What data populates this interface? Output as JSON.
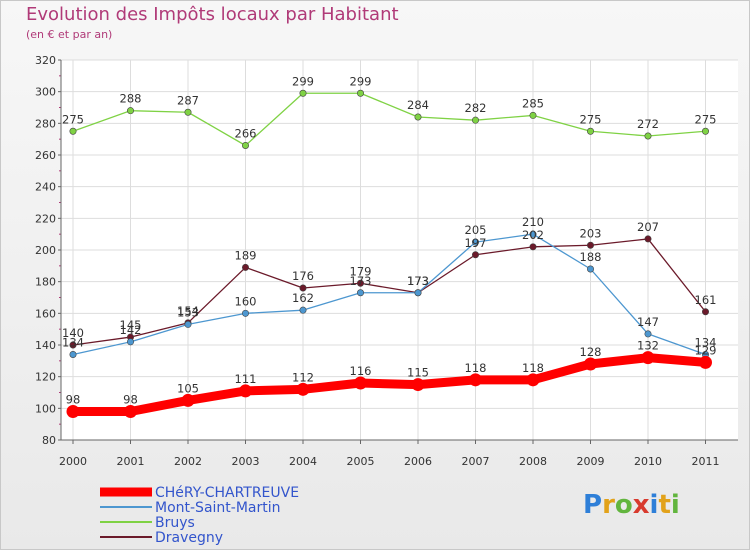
{
  "title": "Evolution des Impôts locaux par Habitant",
  "subtitle": "(en € et par an)",
  "logo_text": "Proxiti",
  "chart_data": {
    "type": "line",
    "categories": [
      "2000",
      "2001",
      "2002",
      "2003",
      "2004",
      "2005",
      "2006",
      "2007",
      "2008",
      "2009",
      "2010",
      "2011"
    ],
    "ylim": [
      80,
      320
    ],
    "yticks": [
      80,
      100,
      120,
      140,
      160,
      180,
      200,
      220,
      240,
      260,
      280,
      300,
      320
    ],
    "grid": true,
    "legend_position": "bottom-left",
    "series": [
      {
        "name": "CHéRY-CHARTREUVE",
        "color": "#ff0000",
        "values": [
          98,
          98,
          105,
          111,
          112,
          116,
          115,
          118,
          118,
          128,
          132,
          129
        ]
      },
      {
        "name": "Mont-Saint-Martin",
        "color": "#4d97d0",
        "values": [
          134,
          142,
          153,
          160,
          162,
          173,
          173,
          205,
          210,
          188,
          147,
          134
        ]
      },
      {
        "name": "Bruys",
        "color": "#7fd244",
        "values": [
          275,
          288,
          287,
          266,
          299,
          299,
          284,
          282,
          285,
          275,
          272,
          275
        ]
      },
      {
        "name": "Dravegny",
        "color": "#6b1a2a",
        "values": [
          140,
          145,
          154,
          189,
          176,
          179,
          173,
          197,
          202,
          203,
          207,
          161
        ]
      }
    ]
  }
}
